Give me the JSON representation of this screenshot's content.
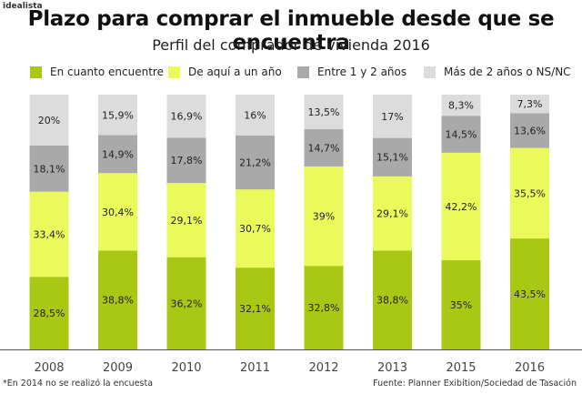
{
  "brand": "idealista",
  "title": "Plazo para comprar el inmueble desde que se encuentra",
  "subtitle": "Perfil del comprador de vivienda 2016",
  "footnote": "*En 2014 no se realizó la encuesta",
  "source": "Fuente: Planner Exibition/Sociedad de Tasación",
  "colors": {
    "series": [
      "#a8c813",
      "#ebfa5b",
      "#a9a9a9",
      "#dcdcdc"
    ],
    "baseline": "#555555"
  },
  "legend": [
    {
      "label": "En cuanto encuentre"
    },
    {
      "label": "De aquí a un año"
    },
    {
      "label": "Entre 1 y 2 años"
    },
    {
      "label": "Más de 2 años o NS/NC"
    }
  ],
  "chart_data": {
    "type": "bar",
    "stacked": true,
    "categories": [
      "2008",
      "2009",
      "2010",
      "2011",
      "2012",
      "2013",
      "2015",
      "2016"
    ],
    "series": [
      {
        "name": "En cuanto encuentre",
        "values": [
          28.5,
          38.8,
          36.2,
          32.1,
          32.8,
          38.8,
          35,
          43.5
        ],
        "labels": [
          "28,5%",
          "38,8%",
          "36,2%",
          "32,1%",
          "32,8%",
          "38,8%",
          "35%",
          "43,5%"
        ]
      },
      {
        "name": "De aquí a un año",
        "values": [
          33.4,
          30.4,
          29.1,
          30.7,
          39,
          29.1,
          42.2,
          35.5
        ],
        "labels": [
          "33,4%",
          "30,4%",
          "29,1%",
          "30,7%",
          "39%",
          "29,1%",
          "42,2%",
          "35,5%"
        ]
      },
      {
        "name": "Entre 1 y 2 años",
        "values": [
          18.1,
          14.9,
          17.8,
          21.2,
          14.7,
          15.1,
          14.5,
          13.6
        ],
        "labels": [
          "18,1%",
          "14,9%",
          "17,8%",
          "21,2%",
          "14,7%",
          "15,1%",
          "14,5%",
          "13,6%"
        ]
      },
      {
        "name": "Más de 2 años o NS/NC",
        "values": [
          20,
          15.9,
          16.9,
          16,
          13.5,
          17,
          8.3,
          7.3
        ],
        "labels": [
          "20%",
          "15,9%",
          "16,9%",
          "16%",
          "13,5%",
          "17%",
          "8,3%",
          "7,3%"
        ]
      }
    ],
    "ylim": [
      0,
      100
    ],
    "grid": false,
    "legend_position": "top"
  }
}
